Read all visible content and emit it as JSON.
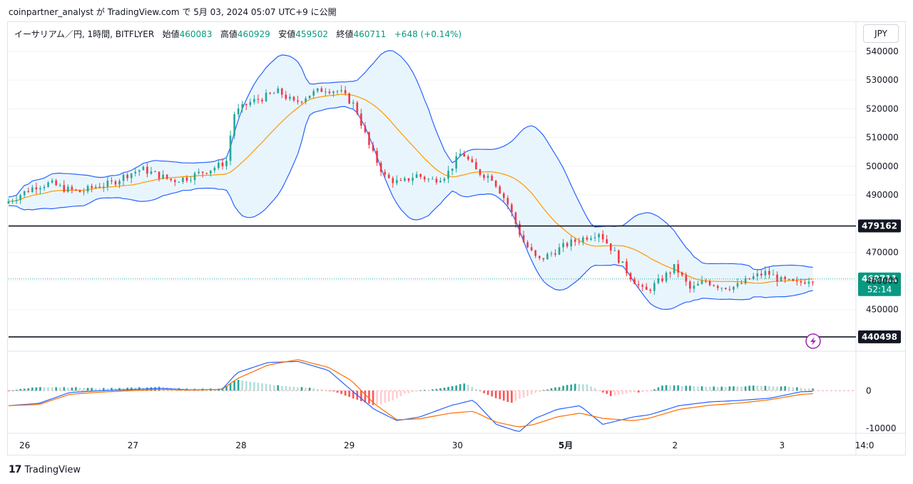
{
  "header": {
    "publish_line": "coinpartner_analyst が TradingView.com で 5月 03, 2024 05:07 UTC+9 に公開"
  },
  "legend": {
    "symbol": "イーサリアム／円, 1時間, BITFLYER",
    "open_label": "始値",
    "open": "460083",
    "high_label": "高値",
    "high": "460929",
    "low_label": "安値",
    "low": "459502",
    "close_label": "終値",
    "close": "460711",
    "change": "+648 (+0.14%)"
  },
  "currency_button": "JPY",
  "footer": {
    "logo_mark": "17",
    "brand": "TradingView"
  },
  "colors": {
    "up": "#26a69a",
    "down": "#f23645",
    "bb": "#2962ff",
    "bb_fill": "#e3f2fd",
    "ma": "#ff9800",
    "macd": "#2962ff",
    "signal": "#ff6d00",
    "hist_up_strong": "#26a69a",
    "hist_up_weak": "#b2dfdb",
    "hist_down_strong": "#ff5252",
    "hist_down_weak": "#ffcdd2"
  },
  "chart_data": [
    {
      "type": "candlestick",
      "title": "イーサリアム／円, 1時間, BITFLYER",
      "y_ticks": [
        "540000",
        "530000",
        "520000",
        "510000",
        "500000",
        "490000",
        "470000",
        "460000",
        "450000"
      ],
      "x_ticks": [
        "26",
        "27",
        "28",
        "29",
        "30",
        "5月",
        "2",
        "3",
        "14:0"
      ],
      "ylim": [
        436000,
        542000
      ],
      "horizontal_lines": [
        {
          "value": 479162,
          "label": "479162"
        },
        {
          "value": 440498,
          "label": "440498"
        }
      ],
      "last_price": {
        "value": 460711,
        "label": "460711",
        "countdown": "52:14"
      },
      "indicators": [
        "Bollinger Bands (upper/basis/lower)"
      ],
      "close_path": [
        [
          0,
          487000
        ],
        [
          10,
          490000
        ],
        [
          20,
          493000
        ],
        [
          30,
          494000
        ],
        [
          40,
          492000
        ],
        [
          50,
          491000
        ],
        [
          60,
          493000
        ],
        [
          70,
          494000
        ],
        [
          80,
          497000
        ],
        [
          90,
          499000
        ],
        [
          100,
          497000
        ],
        [
          110,
          495000
        ],
        [
          120,
          496000
        ],
        [
          130,
          498000
        ],
        [
          140,
          500000
        ],
        [
          146,
          502000
        ],
        [
          150,
          518000
        ],
        [
          160,
          522000
        ],
        [
          170,
          524000
        ],
        [
          180,
          526000
        ],
        [
          190,
          522000
        ],
        [
          200,
          525000
        ],
        [
          210,
          527000
        ],
        [
          220,
          526000
        ],
        [
          230,
          521000
        ],
        [
          240,
          506000
        ],
        [
          250,
          496000
        ],
        [
          260,
          494000
        ],
        [
          270,
          497000
        ],
        [
          280,
          495000
        ],
        [
          290,
          497000
        ],
        [
          300,
          505000
        ],
        [
          310,
          498000
        ],
        [
          320,
          496000
        ],
        [
          330,
          487000
        ],
        [
          340,
          474000
        ],
        [
          350,
          467000
        ],
        [
          360,
          470000
        ],
        [
          370,
          473000
        ],
        [
          380,
          475000
        ],
        [
          390,
          477000
        ],
        [
          400,
          470000
        ],
        [
          410,
          462000
        ],
        [
          420,
          456000
        ],
        [
          430,
          460000
        ],
        [
          440,
          465000
        ],
        [
          450,
          457000
        ],
        [
          460,
          460000
        ],
        [
          470,
          458000
        ],
        [
          480,
          458000
        ],
        [
          490,
          461000
        ],
        [
          500,
          463000
        ],
        [
          510,
          460000
        ],
        [
          520,
          459000
        ],
        [
          528,
          460711
        ]
      ]
    },
    {
      "type": "macd",
      "y_ticks": [
        "0",
        "-10000"
      ],
      "ylim": [
        -11000,
        9000
      ],
      "histogram_path": [
        [
          0,
          0
        ],
        [
          20,
          1000
        ],
        [
          40,
          900
        ],
        [
          60,
          600
        ],
        [
          80,
          800
        ],
        [
          100,
          1000
        ],
        [
          120,
          400
        ],
        [
          140,
          600
        ],
        [
          150,
          3000
        ],
        [
          165,
          2000
        ],
        [
          180,
          1200
        ],
        [
          200,
          700
        ],
        [
          215,
          -400
        ],
        [
          230,
          -2600
        ],
        [
          240,
          -4000
        ],
        [
          250,
          -3000
        ],
        [
          260,
          -800
        ],
        [
          270,
          0
        ],
        [
          285,
          700
        ],
        [
          300,
          2000
        ],
        [
          310,
          -300
        ],
        [
          320,
          -2000
        ],
        [
          330,
          -3200
        ],
        [
          340,
          -1500
        ],
        [
          350,
          0
        ],
        [
          370,
          1800
        ],
        [
          380,
          1600
        ],
        [
          395,
          -1400
        ],
        [
          410,
          -500
        ],
        [
          420,
          -200
        ],
        [
          430,
          1500
        ],
        [
          450,
          1200
        ],
        [
          470,
          1000
        ],
        [
          490,
          1300
        ],
        [
          510,
          1100
        ],
        [
          528,
          500
        ]
      ],
      "macd_path": [
        [
          0,
          -4000
        ],
        [
          20,
          -3400
        ],
        [
          40,
          -500
        ],
        [
          60,
          0
        ],
        [
          80,
          300
        ],
        [
          100,
          600
        ],
        [
          120,
          200
        ],
        [
          140,
          300
        ],
        [
          150,
          4800
        ],
        [
          170,
          7500
        ],
        [
          190,
          7800
        ],
        [
          210,
          5400
        ],
        [
          225,
          100
        ],
        [
          240,
          -5000
        ],
        [
          255,
          -8000
        ],
        [
          270,
          -7000
        ],
        [
          290,
          -4000
        ],
        [
          305,
          -2500
        ],
        [
          320,
          -9000
        ],
        [
          335,
          -11000
        ],
        [
          345,
          -7500
        ],
        [
          360,
          -5000
        ],
        [
          375,
          -4000
        ],
        [
          390,
          -9000
        ],
        [
          410,
          -7000
        ],
        [
          420,
          -6500
        ],
        [
          440,
          -4000
        ],
        [
          460,
          -3000
        ],
        [
          480,
          -2600
        ],
        [
          500,
          -2000
        ],
        [
          520,
          -300
        ],
        [
          528,
          -200
        ]
      ],
      "signal_path": [
        [
          0,
          -4000
        ],
        [
          20,
          -3700
        ],
        [
          40,
          -1000
        ],
        [
          60,
          -400
        ],
        [
          80,
          0
        ],
        [
          100,
          300
        ],
        [
          120,
          200
        ],
        [
          140,
          300
        ],
        [
          150,
          3200
        ],
        [
          170,
          6800
        ],
        [
          190,
          8300
        ],
        [
          210,
          6200
        ],
        [
          225,
          2700
        ],
        [
          240,
          -3500
        ],
        [
          255,
          -7800
        ],
        [
          270,
          -7500
        ],
        [
          290,
          -6000
        ],
        [
          305,
          -5500
        ],
        [
          320,
          -8400
        ],
        [
          335,
          -9700
        ],
        [
          345,
          -9000
        ],
        [
          360,
          -7000
        ],
        [
          375,
          -6000
        ],
        [
          390,
          -7400
        ],
        [
          410,
          -8000
        ],
        [
          420,
          -7400
        ],
        [
          440,
          -5000
        ],
        [
          460,
          -3900
        ],
        [
          480,
          -3300
        ],
        [
          500,
          -2400
        ],
        [
          520,
          -1000
        ],
        [
          528,
          -800
        ]
      ]
    }
  ]
}
